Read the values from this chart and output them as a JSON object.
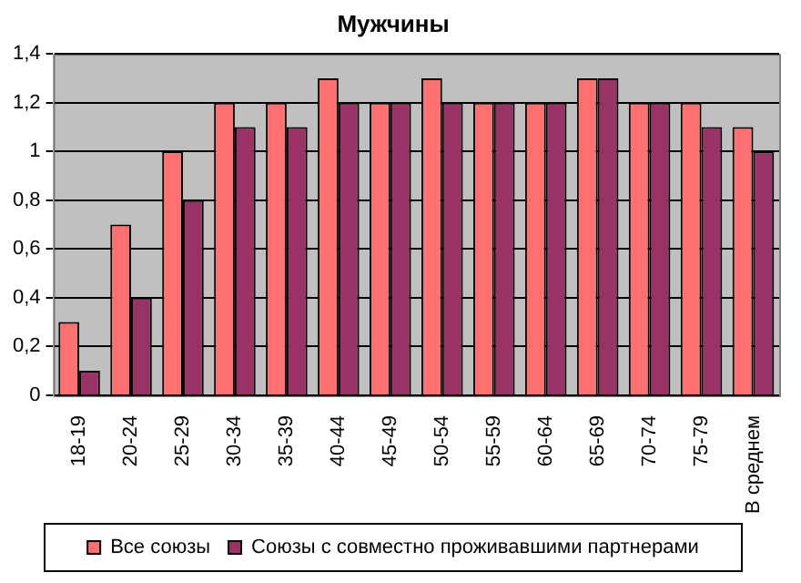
{
  "chart_data": {
    "type": "bar",
    "title": "Мужчины",
    "categories": [
      "18-19",
      "20-24",
      "25-29",
      "30-34",
      "35-39",
      "40-44",
      "45-49",
      "50-54",
      "55-59",
      "60-64",
      "65-69",
      "70-74",
      "75-79",
      "В среднем"
    ],
    "series": [
      {
        "name": "Все союзы",
        "color": "#ff7070",
        "values": [
          0.3,
          0.7,
          1.0,
          1.2,
          1.2,
          1.3,
          1.2,
          1.3,
          1.2,
          1.2,
          1.3,
          1.2,
          1.2,
          1.1
        ]
      },
      {
        "name": "Союзы с совместно проживавшими партнерами",
        "color": "#993366",
        "values": [
          0.1,
          0.4,
          0.8,
          1.1,
          1.1,
          1.2,
          1.2,
          1.2,
          1.2,
          1.2,
          1.3,
          1.2,
          1.1,
          1.0
        ]
      }
    ],
    "ylim": [
      0,
      1.4
    ],
    "yticks": [
      0,
      {
        "value": 0.2,
        "label": "0,2"
      },
      {
        "value": 0.4,
        "label": "0,4"
      },
      {
        "value": 0.6,
        "label": "0,6"
      },
      {
        "value": 0.8,
        "label": "0,8"
      },
      1,
      {
        "value": 1.2,
        "label": "1,2"
      },
      {
        "value": 1.4,
        "label": "1,4"
      }
    ],
    "grid": "y",
    "legend": "bottom"
  }
}
